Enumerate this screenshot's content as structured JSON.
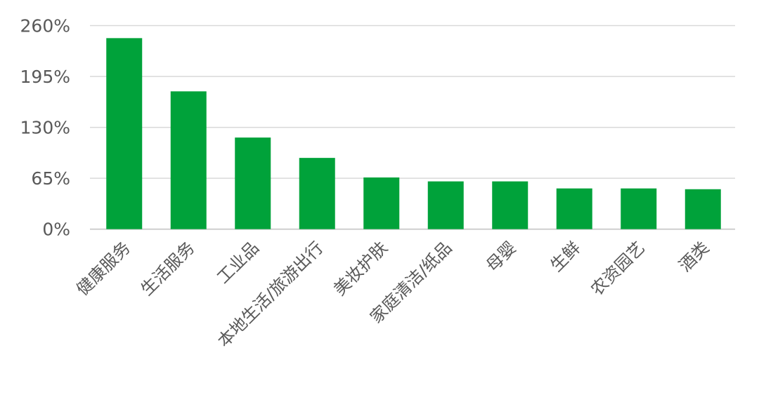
{
  "chart_data": {
    "type": "bar",
    "title": "",
    "xlabel": "",
    "ylabel": "",
    "categories": [
      "健康服务",
      "生活服务",
      "工业品",
      "本地生活/旅游出行",
      "美妆护肤",
      "家庭清洁/纸品",
      "母婴",
      "生鲜",
      "农资园艺",
      "酒类"
    ],
    "values": [
      244,
      176,
      117,
      91,
      66,
      61,
      61,
      52,
      52,
      51
    ],
    "value_unit": "%",
    "ylim": [
      0,
      260
    ],
    "yticks": [
      0,
      65,
      130,
      195,
      260
    ],
    "ytick_labels": [
      "0%",
      "65%",
      "130%",
      "195%",
      "260%"
    ],
    "grid": true,
    "legend": "none",
    "colors": {
      "bar": "#00a23a",
      "grid": "#d9d9d9",
      "text": "#595959"
    }
  }
}
